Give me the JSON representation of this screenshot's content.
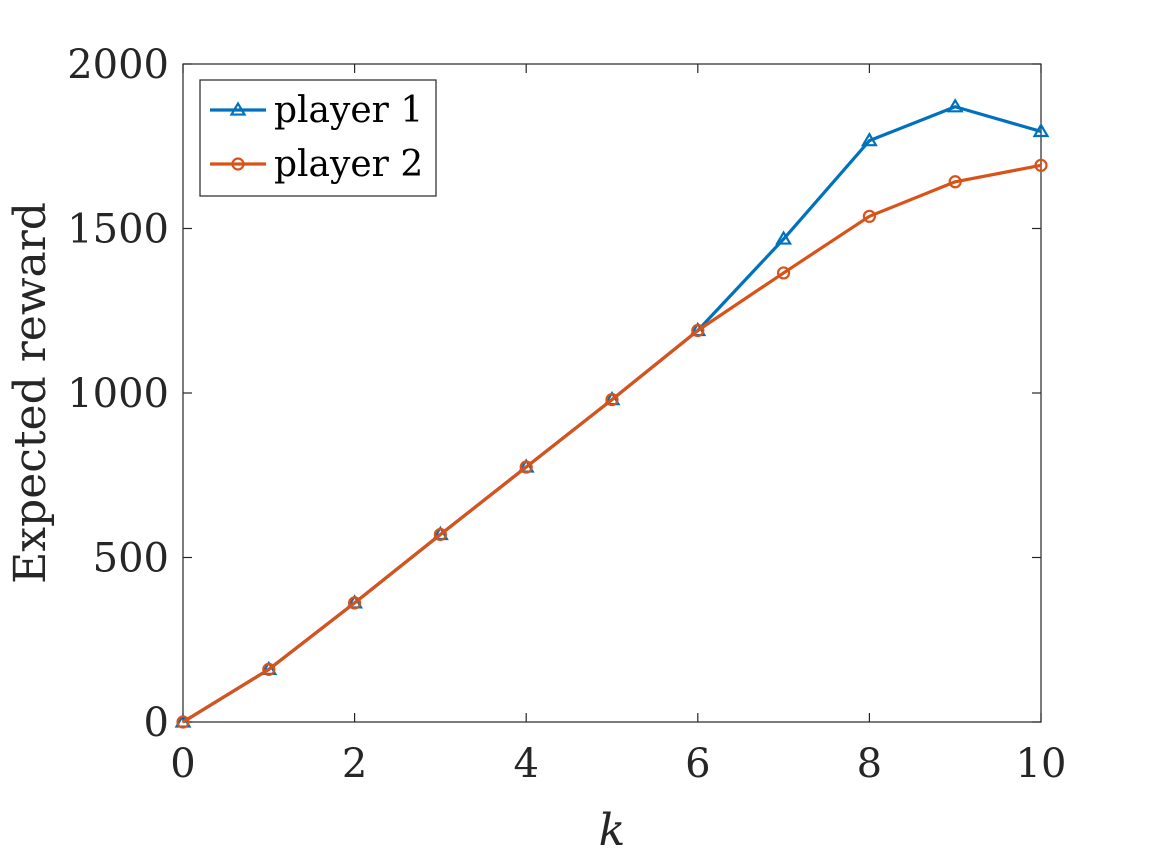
{
  "chart_data": {
    "type": "line",
    "title": "",
    "xlabel": "k",
    "ylabel": "Expected reward",
    "xlim": [
      0,
      10
    ],
    "ylim": [
      0,
      2000
    ],
    "x_ticks": [
      0,
      2,
      4,
      6,
      8,
      10
    ],
    "y_ticks": [
      0,
      500,
      1000,
      1500,
      2000
    ],
    "grid": false,
    "legend_position": "top-left",
    "x": [
      0,
      1,
      2,
      3,
      4,
      5,
      6,
      7,
      8,
      9,
      10
    ],
    "series": [
      {
        "name": "player 1",
        "marker": "triangle",
        "color": "#0072BD",
        "values": [
          0,
          160,
          362,
          570,
          775,
          980,
          1190,
          1468,
          1767,
          1870,
          1795
        ]
      },
      {
        "name": "player 2",
        "marker": "circle",
        "color": "#D95319",
        "values": [
          0,
          160,
          362,
          570,
          775,
          980,
          1190,
          1365,
          1537,
          1642,
          1692
        ]
      }
    ]
  }
}
